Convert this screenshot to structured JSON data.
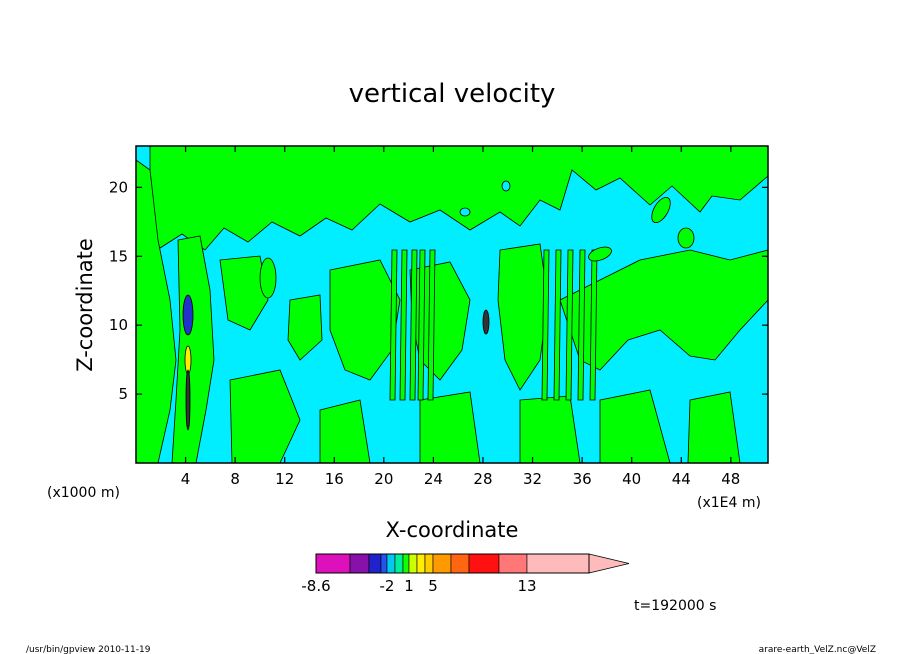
{
  "chart_data": {
    "type": "heatmap",
    "title": "vertical velocity",
    "xlabel": "X-coordinate",
    "ylabel": "Z-coordinate",
    "x_unit": "(x1E4 m)",
    "y_unit": "(x1000 m)",
    "xlim": [
      0,
      51
    ],
    "ylim": [
      0,
      23
    ],
    "x_ticks": [
      "4",
      "8",
      "12",
      "16",
      "20",
      "24",
      "28",
      "32",
      "36",
      "40",
      "44",
      "48"
    ],
    "y_ticks": [
      "5",
      "10",
      "15",
      "20"
    ],
    "colorbar": {
      "levels": [
        -8.6,
        -6,
        -4,
        -3,
        -2,
        -1,
        0,
        1,
        2,
        3,
        5,
        7,
        9,
        11,
        13,
        17
      ],
      "tick_labels": [
        "-8.6",
        "-2",
        "1",
        "5",
        "13"
      ],
      "colors": [
        "#dd11bb",
        "#8811aa",
        "#2222cc",
        "#2255ee",
        "#00c8ee",
        "#00ee99",
        "#11ff00",
        "#ccff00",
        "#ffee00",
        "#ffcc00",
        "#ff9900",
        "#ff6611",
        "#ff1111",
        "#ff7777",
        "#ffbbbb"
      ]
    },
    "field_colors": {
      "negative": "#00eeff",
      "positive": "#00ff00"
    },
    "annotation": "t=192000 s"
  },
  "footer": {
    "left": "/usr/bin/gpview   2010-11-19",
    "right": "arare-earth_VelZ.nc@VelZ"
  }
}
